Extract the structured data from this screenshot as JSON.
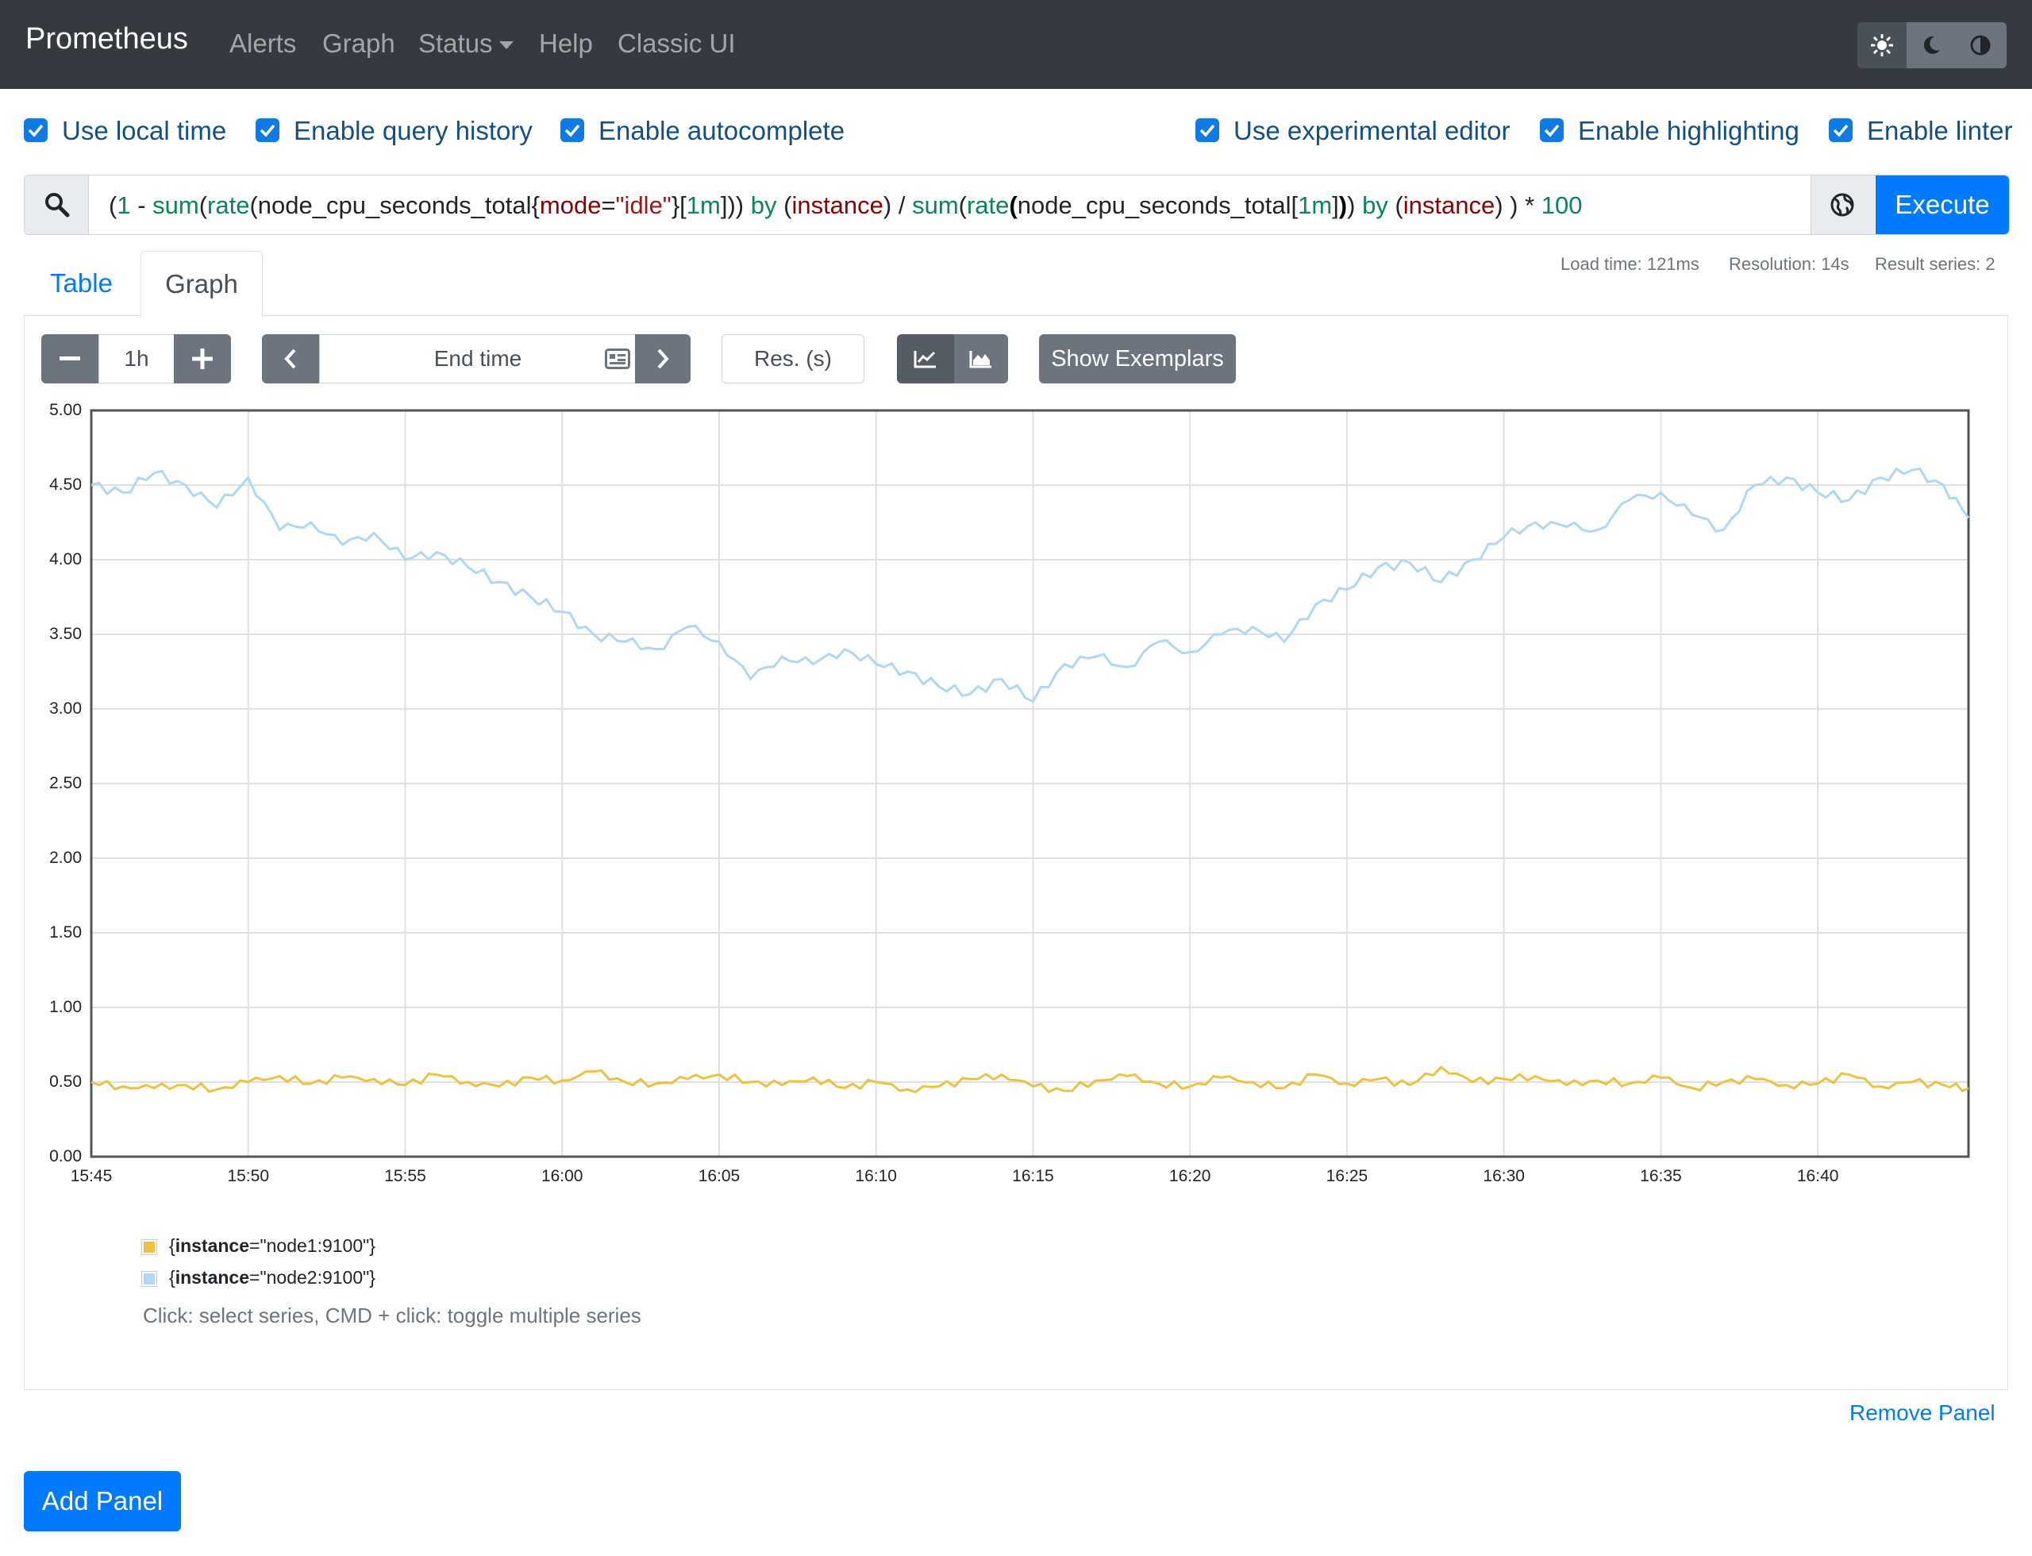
{
  "navbar": {
    "brand": "Prometheus",
    "items": [
      {
        "label": "Alerts"
      },
      {
        "label": "Graph"
      },
      {
        "label": "Status"
      },
      {
        "label": "Help"
      },
      {
        "label": "Classic UI"
      }
    ],
    "theme_icons": [
      "sun-icon",
      "moon-icon",
      "half-circle-icon"
    ]
  },
  "options": {
    "local_time": "Use local time",
    "query_history": "Enable query history",
    "autocomplete": "Enable autocomplete",
    "experimental_editor": "Use experimental editor",
    "highlighting": "Enable highlighting",
    "linter": "Enable linter"
  },
  "query": {
    "tokens": [
      {
        "t": "(",
        "c": "#212529"
      },
      {
        "t": "1",
        "c": "#098658"
      },
      {
        "t": " - ",
        "c": "#212529"
      },
      {
        "t": "sum",
        "c": "#098658"
      },
      {
        "t": "(",
        "c": "#212529"
      },
      {
        "t": "rate",
        "c": "#098658"
      },
      {
        "t": "(",
        "c": "#212529"
      },
      {
        "t": "node_cpu_seconds_total",
        "c": "#212529"
      },
      {
        "t": "{",
        "c": "#212529"
      },
      {
        "t": "mode",
        "c": "#8b0000"
      },
      {
        "t": "=",
        "c": "#212529"
      },
      {
        "t": "\"idle\"",
        "c": "#a31515"
      },
      {
        "t": "}",
        "c": "#212529"
      },
      {
        "t": "[",
        "c": "#212529"
      },
      {
        "t": "1m",
        "c": "#098658"
      },
      {
        "t": "])) ",
        "c": "#212529"
      },
      {
        "t": "by",
        "c": "#098658"
      },
      {
        "t": " (",
        "c": "#212529"
      },
      {
        "t": "instance",
        "c": "#8b0000"
      },
      {
        "t": ") / ",
        "c": "#212529"
      },
      {
        "t": "sum",
        "c": "#098658"
      },
      {
        "t": "(",
        "c": "#212529"
      },
      {
        "t": "rate",
        "c": "#098658"
      },
      {
        "t": "(",
        "c": "#000000",
        "b": true
      },
      {
        "t": "node_cpu_seconds_total",
        "c": "#212529"
      },
      {
        "t": "[",
        "c": "#212529"
      },
      {
        "t": "1m",
        "c": "#098658"
      },
      {
        "t": "]",
        "c": "#212529"
      },
      {
        "t": ")",
        "c": "#000000",
        "b": true
      },
      {
        "t": ") ",
        "c": "#212529"
      },
      {
        "t": "by",
        "c": "#098658"
      },
      {
        "t": " (",
        "c": "#212529"
      },
      {
        "t": "instance",
        "c": "#8b0000"
      },
      {
        "t": ") ) * ",
        "c": "#212529"
      },
      {
        "t": "100",
        "c": "#098658"
      }
    ],
    "execute_label": "Execute"
  },
  "tabs": {
    "table": "Table",
    "graph": "Graph"
  },
  "stats": {
    "load_time": "Load time: 121ms",
    "resolution": "Resolution: 14s",
    "result_series": "Result series: 2"
  },
  "controls": {
    "range_value": "1h",
    "end_time_placeholder": "End time",
    "resolution_placeholder": "Res. (s)",
    "show_exemplars": "Show Exemplars"
  },
  "chart_data": {
    "type": "line",
    "x_ticks": [
      "15:45",
      "15:50",
      "15:55",
      "16:00",
      "16:05",
      "16:10",
      "16:15",
      "16:20",
      "16:25",
      "16:30",
      "16:35",
      "16:40"
    ],
    "y_ticks": [
      "0.00",
      "0.50",
      "1.00",
      "1.50",
      "2.00",
      "2.50",
      "3.00",
      "3.50",
      "4.00",
      "4.50",
      "5.00"
    ],
    "ylim": [
      0,
      5
    ],
    "xlim_minutes": [
      0,
      59.8
    ],
    "grid": true,
    "series": [
      {
        "name": "{instance=\"node1:9100\"}",
        "label_key": "instance",
        "label_value": "=\"node1:9100\"}",
        "color": "#edc240",
        "x_minutes": [
          0,
          1,
          2,
          3,
          4,
          5,
          6,
          7,
          8,
          9,
          10,
          11,
          12,
          13,
          14,
          15,
          16,
          17,
          18,
          19,
          20,
          21,
          22,
          23,
          24,
          25,
          26,
          27,
          28,
          29,
          30,
          31,
          32,
          33,
          34,
          35,
          36,
          37,
          38,
          39,
          40,
          41,
          42,
          43,
          44,
          45,
          46,
          47,
          48,
          49,
          50,
          51,
          52,
          53,
          54,
          55,
          56,
          57,
          58,
          59,
          59.8
        ],
        "values": [
          0.5,
          0.47,
          0.46,
          0.48,
          0.45,
          0.5,
          0.54,
          0.49,
          0.53,
          0.52,
          0.48,
          0.55,
          0.5,
          0.47,
          0.53,
          0.51,
          0.57,
          0.5,
          0.49,
          0.52,
          0.55,
          0.5,
          0.48,
          0.53,
          0.46,
          0.5,
          0.45,
          0.47,
          0.52,
          0.55,
          0.47,
          0.44,
          0.51,
          0.54,
          0.49,
          0.47,
          0.53,
          0.5,
          0.46,
          0.55,
          0.49,
          0.52,
          0.48,
          0.6,
          0.5,
          0.52,
          0.54,
          0.48,
          0.51,
          0.49,
          0.53,
          0.46,
          0.5,
          0.52,
          0.48,
          0.49,
          0.55,
          0.47,
          0.5,
          0.48,
          0.46
        ]
      },
      {
        "name": "{instance=\"node2:9100\"}",
        "label_key": "instance",
        "label_value": "=\"node2:9100\"}",
        "color": "#afd8f8",
        "x_minutes": [
          0,
          1,
          2,
          3,
          4,
          5,
          6,
          7,
          8,
          9,
          10,
          11,
          12,
          13,
          14,
          15,
          16,
          17,
          18,
          19,
          20,
          21,
          22,
          23,
          24,
          25,
          26,
          27,
          28,
          29,
          30,
          31,
          32,
          33,
          34,
          35,
          36,
          37,
          38,
          39,
          40,
          41,
          42,
          43,
          44,
          45,
          46,
          47,
          48,
          49,
          50,
          51,
          52,
          53,
          54,
          55,
          56,
          57,
          58,
          59,
          59.8
        ],
        "values": [
          4.5,
          4.45,
          4.58,
          4.5,
          4.35,
          4.55,
          4.2,
          4.25,
          4.1,
          4.18,
          4.0,
          4.05,
          3.95,
          3.85,
          3.75,
          3.65,
          3.5,
          3.45,
          3.4,
          3.55,
          3.45,
          3.2,
          3.35,
          3.3,
          3.4,
          3.3,
          3.25,
          3.15,
          3.1,
          3.2,
          3.05,
          3.3,
          3.35,
          3.28,
          3.45,
          3.38,
          3.5,
          3.55,
          3.45,
          3.7,
          3.8,
          3.95,
          3.98,
          3.85,
          4.0,
          4.15,
          4.25,
          4.22,
          4.2,
          4.4,
          4.45,
          4.3,
          4.2,
          4.5,
          4.55,
          4.45,
          4.4,
          4.55,
          4.6,
          4.5,
          4.28
        ]
      }
    ]
  },
  "legend": {
    "hint": "Click: select series, CMD + click: toggle multiple series"
  },
  "footer": {
    "remove_panel": "Remove Panel",
    "add_panel": "Add Panel"
  }
}
